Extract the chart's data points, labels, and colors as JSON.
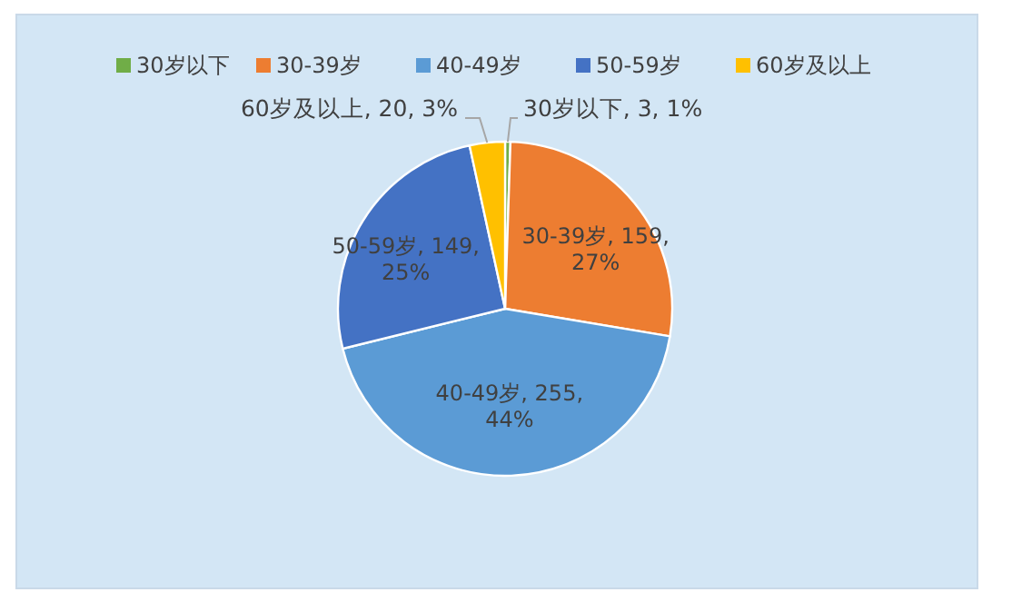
{
  "chart_data": {
    "type": "pie",
    "categories": [
      "30岁以下",
      "30-39岁",
      "40-49岁",
      "50-59岁",
      "60岁及以上"
    ],
    "values": [
      3,
      159,
      255,
      149,
      20
    ],
    "colors": [
      "#70ad47",
      "#ed7d31",
      "#5b9bd5",
      "#4472c4",
      "#ffc000"
    ],
    "value_labels": [
      "30岁以下, 3, 1%",
      "30-39岁, 159, 27%",
      "40-49岁, 255, 44%",
      "50-59岁, 149, 25%",
      "60岁及以上, 20, 3%"
    ],
    "legend": "top"
  }
}
